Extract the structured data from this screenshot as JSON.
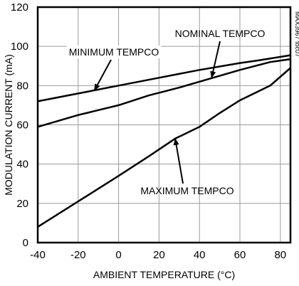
{
  "chart_data": {
    "type": "line",
    "title": "",
    "xlabel": "AMBIENT TEMPERATURE (°C)",
    "ylabel": "MODULATION CURRENT (mA)",
    "xlim": [
      -40,
      85
    ],
    "ylim": [
      0,
      120
    ],
    "x_ticks": [
      -40,
      -20,
      0,
      20,
      40,
      60,
      80
    ],
    "y_ticks": [
      0,
      20,
      40,
      60,
      80,
      100,
      120
    ],
    "grid": true,
    "figure_id": "MAX3967 toc07",
    "series": [
      {
        "name": "MINIMUM TEMPCO",
        "points": [
          [
            -40,
            72
          ],
          [
            -20,
            76
          ],
          [
            0,
            80
          ],
          [
            20,
            84
          ],
          [
            40,
            88
          ],
          [
            60,
            91.5
          ],
          [
            70,
            93
          ],
          [
            85,
            95.5
          ]
        ]
      },
      {
        "name": "NOMINAL TEMPCO",
        "points": [
          [
            -40,
            59
          ],
          [
            -20,
            65
          ],
          [
            0,
            70
          ],
          [
            15,
            75
          ],
          [
            30,
            79
          ],
          [
            45,
            83.5
          ],
          [
            60,
            88
          ],
          [
            75,
            92
          ],
          [
            85,
            93.5
          ]
        ]
      },
      {
        "name": "MAXIMUM TEMPCO",
        "points": [
          [
            -40,
            8
          ],
          [
            -20,
            21
          ],
          [
            0,
            34
          ],
          [
            15,
            44
          ],
          [
            28,
            53
          ],
          [
            40,
            59
          ],
          [
            50,
            66
          ],
          [
            60,
            72.5
          ],
          [
            75,
            80
          ],
          [
            85,
            89
          ]
        ]
      }
    ],
    "annotations": [
      {
        "text": "MINIMUM TEMPCO",
        "series": 0,
        "target": [
          -12,
          77.5
        ]
      },
      {
        "text": "NOMINAL TEMPCO",
        "series": 1,
        "target": [
          46,
          84
        ]
      },
      {
        "text": "MAXIMUM TEMPCO",
        "series": 2,
        "target": [
          28,
          53
        ]
      }
    ]
  }
}
